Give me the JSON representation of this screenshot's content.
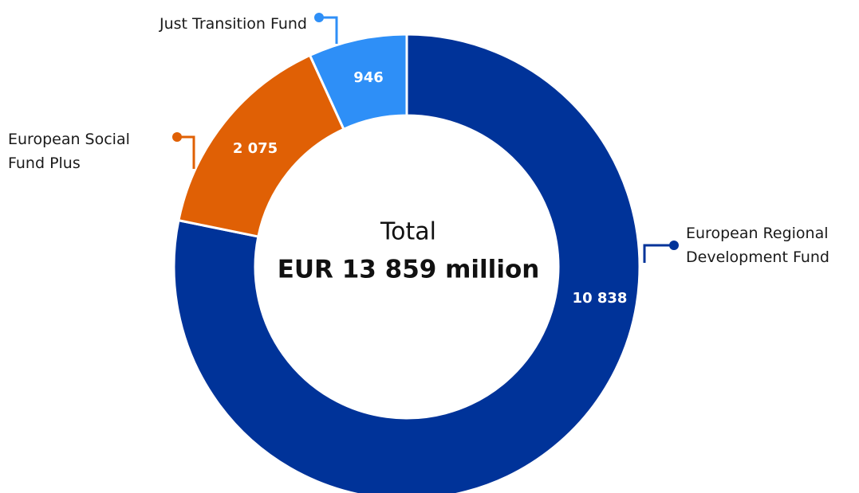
{
  "chart_data": {
    "type": "donut",
    "categories": [
      "European Regional Development Fund",
      "European Social Fund Plus",
      "Just Transition Fund"
    ],
    "values": [
      10838,
      2075,
      946
    ],
    "value_labels": [
      "10 838",
      "2 075",
      "946"
    ],
    "colors": [
      "#003399",
      "#e06005",
      "#2e8ff7"
    ],
    "center_label": "Total",
    "total_label": "EUR 13 859 million"
  }
}
